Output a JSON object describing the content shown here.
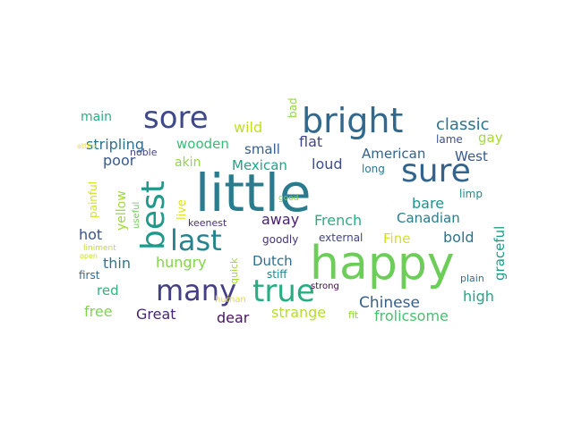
{
  "words": [
    {
      "text": "little",
      "color": "#2a7b8e"
    },
    {
      "text": "happy",
      "color": "#6ccd59"
    },
    {
      "text": "bright",
      "color": "#30688e"
    },
    {
      "text": "sure",
      "color": "#32648e"
    },
    {
      "text": "sore",
      "color": "#3e4989"
    },
    {
      "text": "best",
      "color": "#1f9a8a"
    },
    {
      "text": "last",
      "color": "#25848e"
    },
    {
      "text": "many",
      "color": "#433e85"
    },
    {
      "text": "true",
      "color": "#27ad81"
    },
    {
      "text": "classic",
      "color": "#2c728e"
    },
    {
      "text": "main",
      "color": "#28ae80"
    },
    {
      "text": "wild",
      "color": "#c2df23"
    },
    {
      "text": "stripling",
      "color": "#2d708e"
    },
    {
      "text": "wooden",
      "color": "#3bbb75"
    },
    {
      "text": "small",
      "color": "#355f8d"
    },
    {
      "text": "flat",
      "color": "#404688"
    },
    {
      "text": "gay",
      "color": "#a5db36"
    },
    {
      "text": "lame",
      "color": "#3b528b"
    },
    {
      "text": "bad",
      "color": "#8fd744"
    },
    {
      "text": "poor",
      "color": "#38588c"
    },
    {
      "text": "noble",
      "color": "#414487"
    },
    {
      "text": "Mexican",
      "color": "#20a386"
    },
    {
      "text": "loud",
      "color": "#3d4d8a"
    },
    {
      "text": "American",
      "color": "#33628d"
    },
    {
      "text": "West",
      "color": "#375a8c"
    },
    {
      "text": "akin",
      "color": "#95d840"
    },
    {
      "text": "long",
      "color": "#2a768e"
    },
    {
      "text": "yellow",
      "color": "#9dd93b"
    },
    {
      "text": "live",
      "color": "#dde318"
    },
    {
      "text": "painful",
      "color": "#d2e21b"
    },
    {
      "text": "atthe",
      "color": "#eae51a"
    },
    {
      "text": "useful",
      "color": "#6ece58"
    },
    {
      "text": "good",
      "color": "#7ad151"
    },
    {
      "text": "limp",
      "color": "#24878e"
    },
    {
      "text": "away",
      "color": "#481f70"
    },
    {
      "text": "French",
      "color": "#29af7f"
    },
    {
      "text": "bare",
      "color": "#1f948c"
    },
    {
      "text": "Canadian",
      "color": "#287c8e"
    },
    {
      "text": "graceful",
      "color": "#1e9c89"
    },
    {
      "text": "keenest",
      "color": "#472d7b"
    },
    {
      "text": "hot",
      "color": "#3b528b"
    },
    {
      "text": "goodly",
      "color": "#46327e"
    },
    {
      "text": "external",
      "color": "#414487"
    },
    {
      "text": "Fine",
      "color": "#d5e21a"
    },
    {
      "text": "bold",
      "color": "#2c728e"
    },
    {
      "text": "liniment",
      "color": "#bddf26"
    },
    {
      "text": "open",
      "color": "#cae11f"
    },
    {
      "text": "thin",
      "color": "#2a778e"
    },
    {
      "text": "hungry",
      "color": "#84d44b"
    },
    {
      "text": "Dutch",
      "color": "#2e6e8e"
    },
    {
      "text": "first",
      "color": "#306a8e"
    },
    {
      "text": "quick",
      "color": "#a2da37"
    },
    {
      "text": "stiff",
      "color": "#26828e"
    },
    {
      "text": "plain",
      "color": "#2d718e"
    },
    {
      "text": "red",
      "color": "#2fb47c"
    },
    {
      "text": "human",
      "color": "#dfe318"
    },
    {
      "text": "strong",
      "color": "#440154"
    },
    {
      "text": "Chinese",
      "color": "#35608d"
    },
    {
      "text": "high",
      "color": "#21a685"
    },
    {
      "text": "free",
      "color": "#7fd34e"
    },
    {
      "text": "Great",
      "color": "#482576"
    },
    {
      "text": "dear",
      "color": "#471365"
    },
    {
      "text": "strange",
      "color": "#b5de2b"
    },
    {
      "text": "fit",
      "color": "#8ed645"
    },
    {
      "text": "frolicsome",
      "color": "#4ac16d"
    }
  ]
}
